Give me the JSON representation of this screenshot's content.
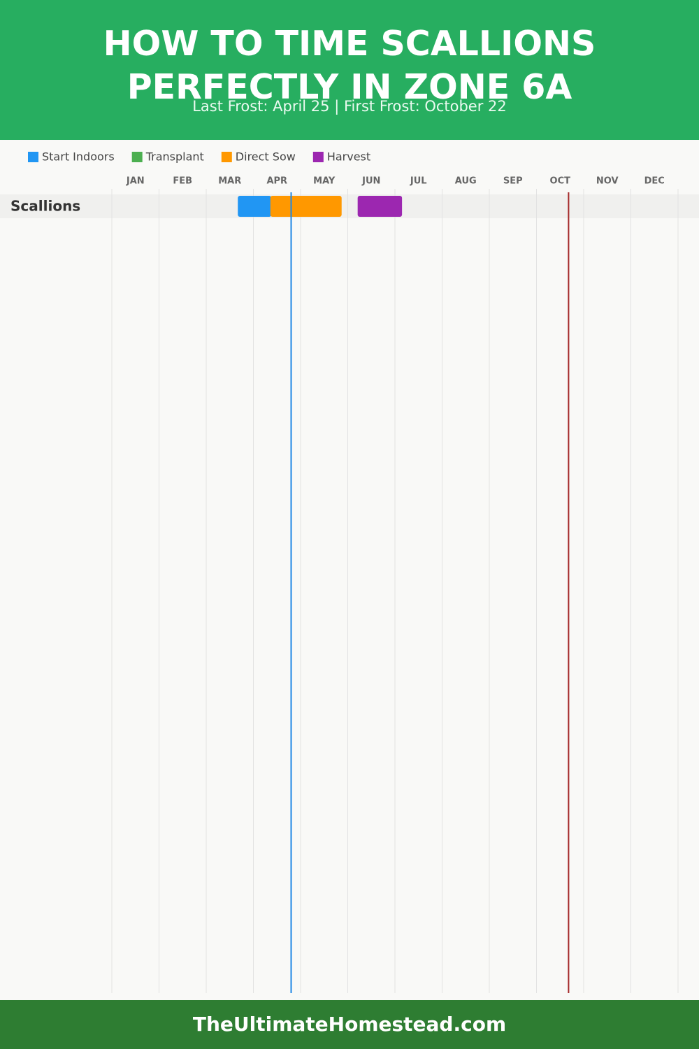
{
  "chart_data": {
    "type": "gantt",
    "title": "HOW TO TIME SCALLIONS PERFECTLY IN ZONE 6A",
    "subtitle": "Last Frost: April 25 | First Frost: October 22",
    "months": [
      "JAN",
      "FEB",
      "MAR",
      "APR",
      "MAY",
      "JUN",
      "JUL",
      "AUG",
      "SEP",
      "OCT",
      "NOV",
      "DEC"
    ],
    "xlim": [
      0,
      12
    ],
    "xticks": [
      0,
      1,
      2,
      3,
      4,
      5,
      6,
      7,
      8,
      9,
      10,
      11,
      12
    ],
    "categories": [
      "Scallions"
    ],
    "series": [
      {
        "name": "Start Indoors",
        "color": "#2196f3",
        "values": [
          [
            2.67,
            3.38
          ]
        ]
      },
      {
        "name": "Transplant",
        "color": "#4caf50",
        "values": [
          null
        ]
      },
      {
        "name": "Direct Sow",
        "color": "#ff9800",
        "values": [
          [
            3.36,
            4.87
          ]
        ]
      },
      {
        "name": "Harvest",
        "color": "#9c27b0",
        "values": [
          [
            5.21,
            6.15
          ]
        ]
      }
    ],
    "markers": [
      {
        "value": 3.8,
        "color": "#1e88e5"
      },
      {
        "value": 9.68,
        "color": "#a52a2a"
      }
    ],
    "grid": true
  },
  "footer": "TheUltimateHomestead.com"
}
